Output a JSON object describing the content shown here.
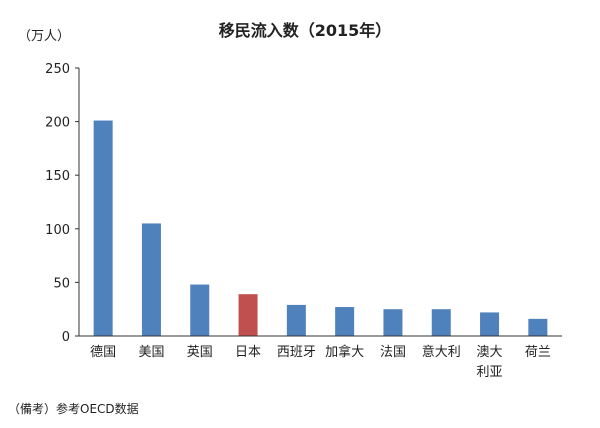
{
  "chart_data": {
    "type": "bar",
    "title": "移民流入数（2015年）",
    "ylabel": "（万人）",
    "xlabel": "",
    "ylim": [
      0,
      250
    ],
    "yticks": [
      0,
      50,
      100,
      150,
      200,
      250
    ],
    "grid": false,
    "categories": [
      "德国",
      "美国",
      "英国",
      "日本",
      "西班牙",
      "加拿大",
      "法国",
      "意大利",
      "澳大利亚",
      "荷兰"
    ],
    "category_lines": [
      [
        "德国"
      ],
      [
        "美国"
      ],
      [
        "英国"
      ],
      [
        "日本"
      ],
      [
        "西班牙"
      ],
      [
        "加拿大"
      ],
      [
        "法国"
      ],
      [
        "意大利"
      ],
      [
        "澳大",
        "利亚"
      ],
      [
        "荷兰"
      ]
    ],
    "values": [
      201,
      105,
      48,
      39,
      29,
      27,
      25,
      25,
      22,
      16
    ],
    "colors": [
      "#4f81bd",
      "#4f81bd",
      "#4f81bd",
      "#c0504d",
      "#4f81bd",
      "#4f81bd",
      "#4f81bd",
      "#4f81bd",
      "#4f81bd",
      "#4f81bd"
    ],
    "note": "（備考）参考OECD数据"
  }
}
